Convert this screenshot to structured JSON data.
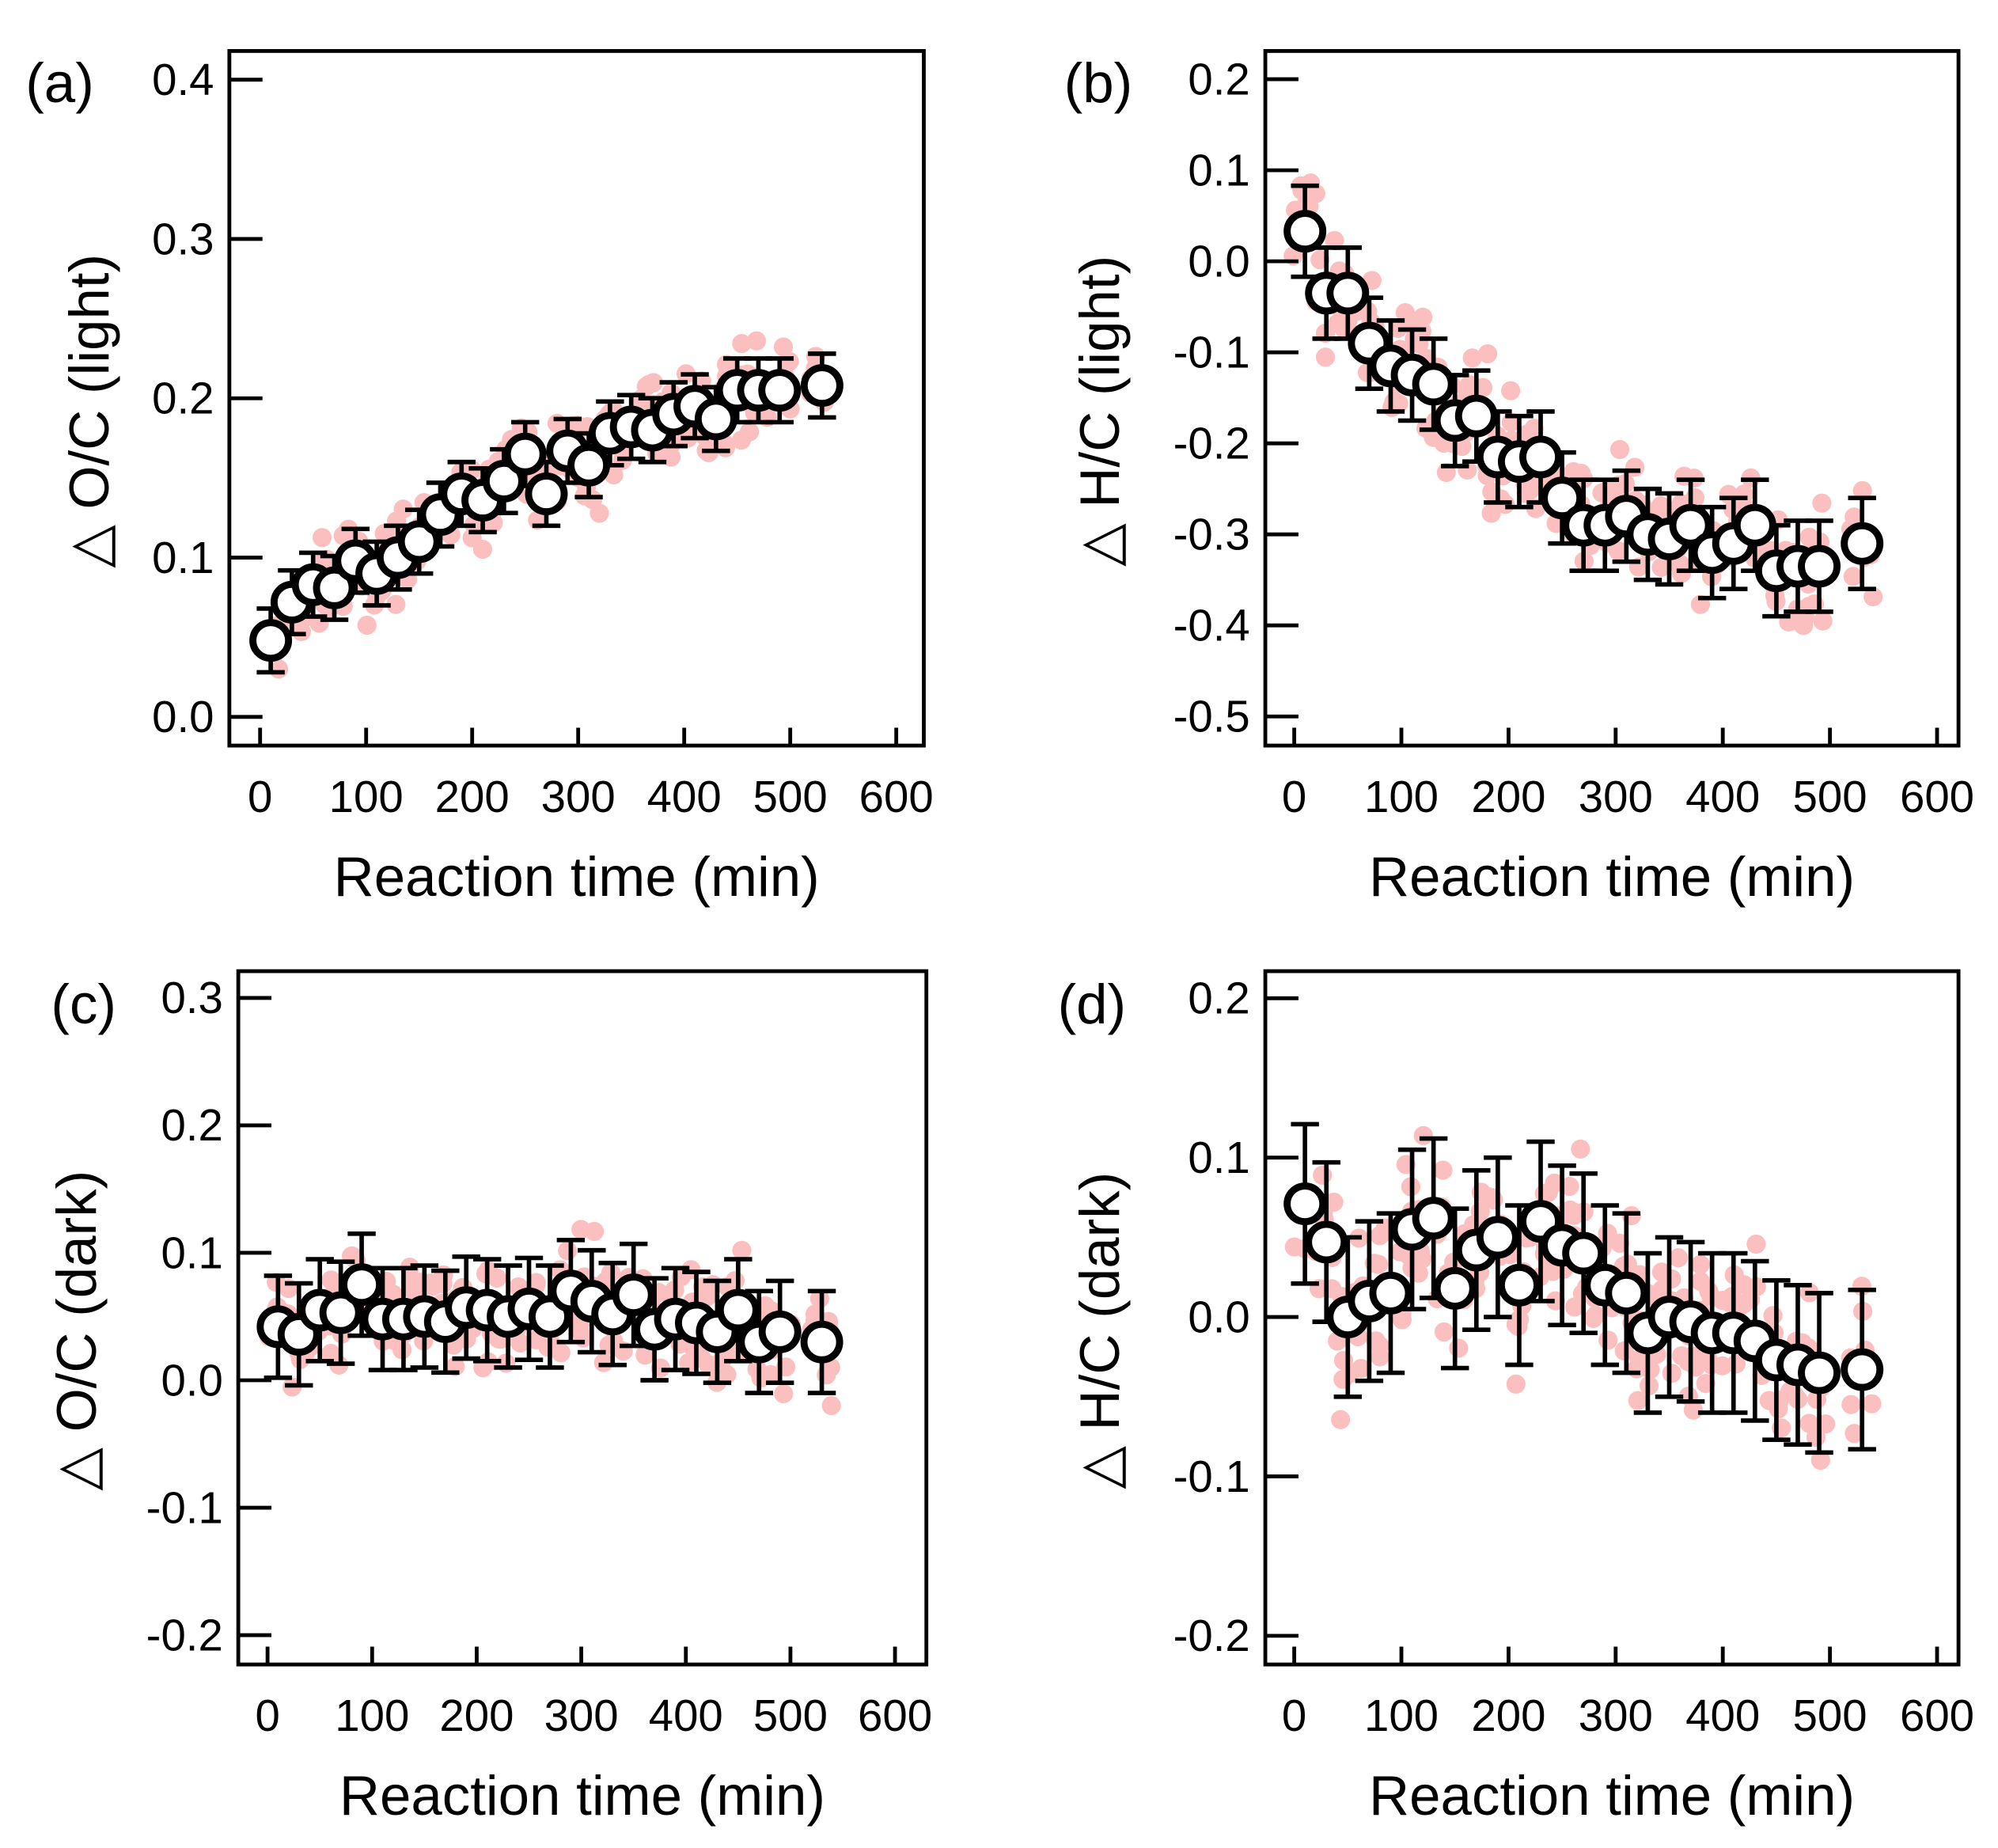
{
  "chart_data": [
    {
      "panel": "(a)",
      "type": "scatter",
      "xlabel": "Reaction time (min)",
      "ylabel": "△ O/C (light)",
      "xlim": [
        -29,
        626
      ],
      "ylim": [
        -0.018,
        0.418
      ],
      "xticks": [
        0,
        100,
        200,
        300,
        400,
        500,
        600
      ],
      "yticks": [
        0.0,
        0.1,
        0.2,
        0.3,
        0.4
      ],
      "ytick_labels": [
        "0.0",
        "0.1",
        "0.2",
        "0.3",
        "0.4"
      ],
      "x": [
        10,
        30,
        50,
        70,
        90,
        110,
        130,
        150,
        170,
        190,
        210,
        230,
        250,
        270,
        290,
        310,
        330,
        350,
        370,
        390,
        410,
        430,
        450,
        470,
        490,
        530
      ],
      "y": [
        0.048,
        0.072,
        0.083,
        0.081,
        0.098,
        0.09,
        0.1,
        0.11,
        0.127,
        0.14,
        0.136,
        0.148,
        0.165,
        0.14,
        0.167,
        0.158,
        0.178,
        0.182,
        0.18,
        0.19,
        0.195,
        0.187,
        0.205,
        0.205,
        0.205,
        0.208
      ],
      "error": 0.02,
      "raw_spread": 0.025,
      "mean_color": "#000000",
      "raw_color": "#fbbfbf"
    },
    {
      "panel": "(b)",
      "type": "scatter",
      "xlabel": "Reaction time (min)",
      "ylabel": "△ H/C (light)",
      "xlim": [
        -27,
        620
      ],
      "ylim": [
        -0.532,
        0.231
      ],
      "xticks": [
        0,
        100,
        200,
        300,
        400,
        500,
        600
      ],
      "yticks": [
        0.2,
        0.1,
        0.0,
        -0.1,
        -0.2,
        -0.3,
        -0.4,
        -0.5
      ],
      "ytick_labels": [
        "0.2",
        "0.1",
        "0.0",
        "-0.1",
        "-0.2",
        "-0.3",
        "-0.4",
        "-0.5"
      ],
      "x": [
        10,
        30,
        50,
        70,
        90,
        110,
        130,
        150,
        170,
        190,
        210,
        230,
        250,
        270,
        290,
        310,
        330,
        350,
        370,
        390,
        410,
        430,
        450,
        470,
        490,
        530
      ],
      "y": [
        0.033,
        -0.035,
        -0.035,
        -0.09,
        -0.115,
        -0.125,
        -0.135,
        -0.175,
        -0.17,
        -0.215,
        -0.22,
        -0.215,
        -0.26,
        -0.29,
        -0.29,
        -0.28,
        -0.3,
        -0.305,
        -0.29,
        -0.32,
        -0.31,
        -0.29,
        -0.34,
        -0.335,
        -0.335,
        -0.31
      ],
      "error": 0.05,
      "raw_spread": 0.06,
      "mean_color": "#000000",
      "raw_color": "#fbbfbf"
    },
    {
      "panel": "(c)",
      "type": "scatter",
      "xlabel": "Reaction time (min)",
      "ylabel": "△ O/C (dark)",
      "xlim": [
        -28,
        630
      ],
      "ylim": [
        -0.223,
        0.321
      ],
      "xticks": [
        0,
        100,
        200,
        300,
        400,
        500,
        600
      ],
      "yticks": [
        0.3,
        0.2,
        0.1,
        0.0,
        -0.1,
        -0.2
      ],
      "ytick_labels": [
        "0.3",
        "0.2",
        "0.1",
        "0.0",
        "-0.1",
        "-0.2"
      ],
      "x": [
        10,
        30,
        50,
        70,
        90,
        110,
        130,
        150,
        170,
        190,
        210,
        230,
        250,
        270,
        290,
        310,
        330,
        350,
        370,
        390,
        410,
        430,
        450,
        470,
        490,
        530
      ],
      "y": [
        0.042,
        0.036,
        0.055,
        0.053,
        0.075,
        0.048,
        0.048,
        0.05,
        0.046,
        0.057,
        0.055,
        0.05,
        0.056,
        0.05,
        0.07,
        0.062,
        0.052,
        0.067,
        0.04,
        0.048,
        0.045,
        0.038,
        0.055,
        0.03,
        0.038,
        0.03
      ],
      "error": 0.04,
      "raw_spread": 0.04,
      "mean_color": "#000000",
      "raw_color": "#fbbfbf"
    },
    {
      "panel": "(d)",
      "type": "scatter",
      "xlabel": "Reaction time (min)",
      "ylabel": "△ H/C (dark)",
      "xlim": [
        -27,
        620
      ],
      "ylim": [
        -0.218,
        0.217
      ],
      "xticks": [
        0,
        100,
        200,
        300,
        400,
        500,
        600
      ],
      "yticks": [
        0.2,
        0.1,
        0.0,
        -0.1,
        -0.2
      ],
      "ytick_labels": [
        "0.2",
        "0.1",
        "0.0",
        "-0.1",
        "-0.2"
      ],
      "x": [
        10,
        30,
        50,
        70,
        90,
        110,
        130,
        150,
        170,
        190,
        210,
        230,
        250,
        270,
        290,
        310,
        330,
        350,
        370,
        390,
        410,
        430,
        450,
        470,
        490,
        530
      ],
      "y": [
        0.071,
        0.047,
        0.0,
        0.01,
        0.015,
        0.055,
        0.062,
        0.018,
        0.042,
        0.05,
        0.02,
        0.06,
        0.045,
        0.04,
        0.02,
        0.015,
        -0.01,
        0.0,
        -0.003,
        -0.01,
        -0.01,
        -0.015,
        -0.027,
        -0.03,
        -0.035,
        -0.033
      ],
      "error": 0.05,
      "raw_spread": 0.05,
      "mean_color": "#000000",
      "raw_color": "#fbbfbf"
    }
  ]
}
